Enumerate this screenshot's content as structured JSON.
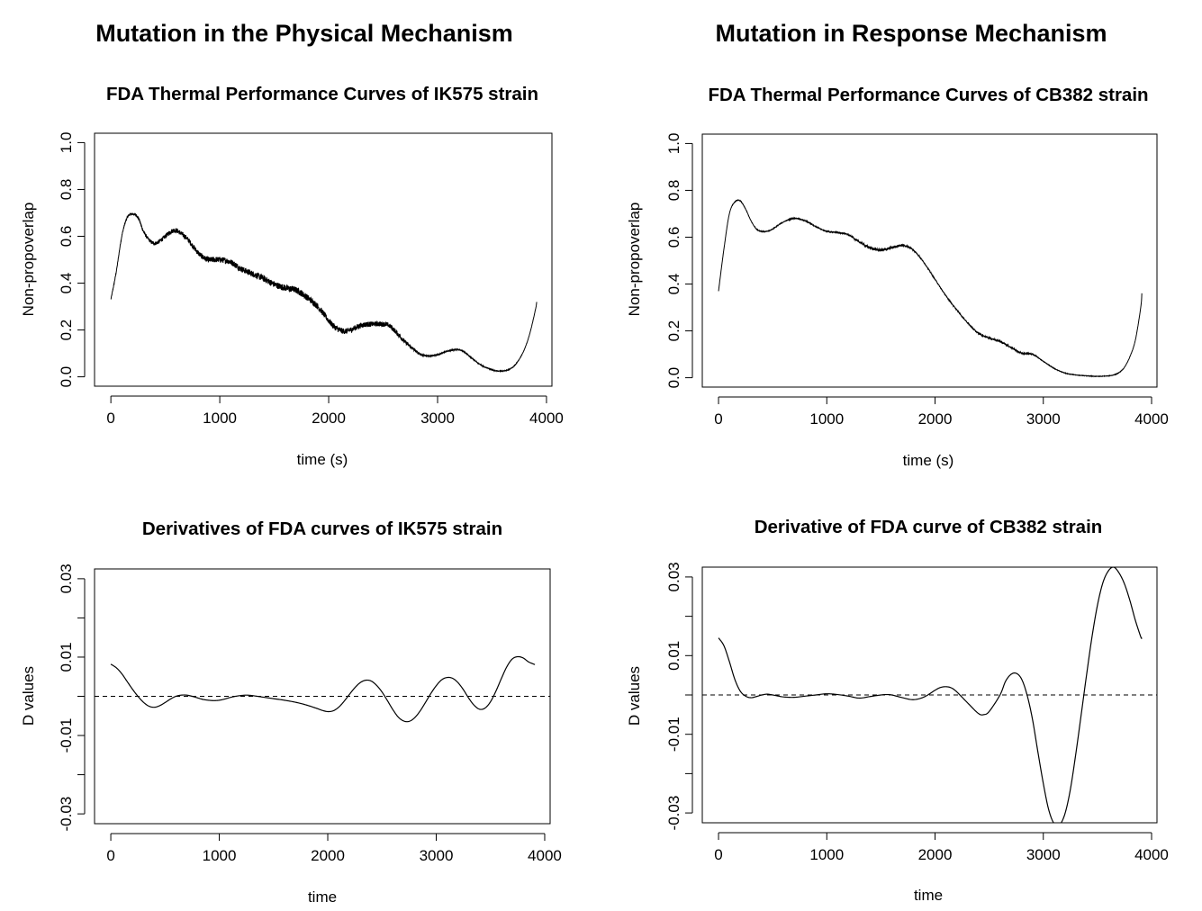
{
  "headings": {
    "left": "Mutation in the Physical Mechanism",
    "right": "Mutation in Response Mechanism"
  },
  "chart_data": [
    {
      "id": "p1",
      "type": "line",
      "title": "FDA Thermal Performance Curves of IK575 strain",
      "xlabel": "time (s)",
      "ylabel": "Non-propoverlap",
      "xlim": [
        -150,
        4050
      ],
      "ylim": [
        -0.04,
        1.04
      ],
      "xticks": [
        0,
        1000,
        2000,
        3000,
        4000
      ],
      "xtick_labels": [
        "0",
        "1000",
        "2000",
        "3000",
        "4000"
      ],
      "yticks": [
        0.0,
        0.2,
        0.4,
        0.6,
        0.8,
        1.0
      ],
      "ytick_labels": [
        "0.0",
        "0.2",
        "0.4",
        "0.6",
        "0.8",
        "1.0"
      ],
      "line_style": "solid",
      "noise": [
        [
          0,
          0.003
        ],
        [
          550,
          0.01
        ],
        [
          900,
          0.012
        ],
        [
          1400,
          0.014
        ],
        [
          1800,
          0.014
        ],
        [
          2200,
          0.012
        ],
        [
          2650,
          0.01
        ],
        [
          2900,
          0.003
        ],
        [
          3200,
          0.002
        ],
        [
          3910,
          0.001
        ]
      ],
      "x": [
        0,
        50,
        100,
        150,
        200,
        250,
        300,
        350,
        400,
        450,
        500,
        550,
        600,
        650,
        700,
        750,
        800,
        850,
        900,
        1000,
        1100,
        1200,
        1300,
        1400,
        1500,
        1600,
        1700,
        1800,
        1900,
        2000,
        2050,
        2100,
        2150,
        2200,
        2300,
        2400,
        2500,
        2550,
        2600,
        2700,
        2800,
        2850,
        2900,
        2950,
        3000,
        3100,
        3150,
        3200,
        3250,
        3300,
        3400,
        3500,
        3550,
        3600,
        3650,
        3700,
        3750,
        3800,
        3850,
        3900,
        3910
      ],
      "y": [
        0.33,
        0.45,
        0.6,
        0.68,
        0.695,
        0.68,
        0.62,
        0.585,
        0.57,
        0.58,
        0.6,
        0.62,
        0.625,
        0.61,
        0.59,
        0.56,
        0.53,
        0.51,
        0.5,
        0.5,
        0.49,
        0.46,
        0.44,
        0.42,
        0.395,
        0.38,
        0.37,
        0.34,
        0.3,
        0.24,
        0.215,
        0.2,
        0.195,
        0.2,
        0.22,
        0.225,
        0.225,
        0.22,
        0.2,
        0.15,
        0.11,
        0.095,
        0.09,
        0.09,
        0.095,
        0.11,
        0.115,
        0.115,
        0.105,
        0.085,
        0.05,
        0.03,
        0.025,
        0.025,
        0.03,
        0.045,
        0.075,
        0.12,
        0.19,
        0.29,
        0.32
      ]
    },
    {
      "id": "p2",
      "type": "line",
      "title": "FDA Thermal Performance Curves of CB382 strain",
      "xlabel": "time (s)",
      "ylabel": "Non-propoverlap",
      "xlim": [
        -150,
        4050
      ],
      "ylim": [
        -0.04,
        1.04
      ],
      "xticks": [
        0,
        1000,
        2000,
        3000,
        4000
      ],
      "xtick_labels": [
        "0",
        "1000",
        "2000",
        "3000",
        "4000"
      ],
      "yticks": [
        0.0,
        0.2,
        0.4,
        0.6,
        0.8,
        1.0
      ],
      "ytick_labels": [
        "0.0",
        "0.2",
        "0.4",
        "0.6",
        "0.8",
        "1.0"
      ],
      "line_style": "solid",
      "noise": [
        [
          0,
          0.001
        ],
        [
          1200,
          0.002
        ],
        [
          1300,
          0.005
        ],
        [
          1500,
          0.006
        ],
        [
          1750,
          0.004
        ],
        [
          1900,
          0.002
        ],
        [
          2400,
          0.002
        ],
        [
          2550,
          0.004
        ],
        [
          2800,
          0.003
        ],
        [
          3000,
          0.001
        ],
        [
          3910,
          0.001
        ]
      ],
      "x": [
        0,
        50,
        100,
        150,
        200,
        250,
        300,
        350,
        400,
        450,
        500,
        600,
        700,
        800,
        900,
        1000,
        1100,
        1200,
        1300,
        1400,
        1500,
        1600,
        1700,
        1800,
        1900,
        2000,
        2100,
        2200,
        2300,
        2400,
        2500,
        2600,
        2700,
        2800,
        2900,
        3000,
        3100,
        3200,
        3300,
        3400,
        3500,
        3600,
        3650,
        3700,
        3750,
        3800,
        3850,
        3900,
        3910
      ],
      "y": [
        0.37,
        0.55,
        0.7,
        0.75,
        0.755,
        0.72,
        0.67,
        0.635,
        0.625,
        0.625,
        0.635,
        0.665,
        0.68,
        0.67,
        0.645,
        0.625,
        0.62,
        0.61,
        0.58,
        0.555,
        0.545,
        0.555,
        0.565,
        0.545,
        0.49,
        0.42,
        0.35,
        0.29,
        0.235,
        0.19,
        0.17,
        0.155,
        0.13,
        0.105,
        0.1,
        0.07,
        0.04,
        0.02,
        0.012,
        0.008,
        0.006,
        0.008,
        0.012,
        0.022,
        0.045,
        0.09,
        0.16,
        0.3,
        0.36
      ]
    },
    {
      "id": "p3",
      "type": "line",
      "title": "Derivatives of FDA curves of IK575 strain",
      "xlabel": "time",
      "ylabel": "D values",
      "xlim": [
        -150,
        4050
      ],
      "ylim": [
        -0.0325,
        0.0325
      ],
      "xticks": [
        0,
        1000,
        2000,
        3000,
        4000
      ],
      "xtick_labels": [
        "0",
        "1000",
        "2000",
        "3000",
        "4000"
      ],
      "yticks": [
        -0.03,
        -0.02,
        -0.01,
        0.0,
        0.01,
        0.02,
        0.03
      ],
      "ytick_labels": [
        "-0.03",
        "",
        "-0.01",
        "",
        "0.01",
        "",
        "0.03"
      ],
      "line_style": "solid",
      "reference_line": {
        "y": 0,
        "style": "dashed"
      },
      "x": [
        0,
        50,
        100,
        150,
        200,
        250,
        300,
        350,
        400,
        450,
        500,
        550,
        600,
        650,
        700,
        750,
        800,
        850,
        900,
        950,
        1000,
        1050,
        1100,
        1150,
        1200,
        1250,
        1300,
        1350,
        1400,
        1450,
        1500,
        1600,
        1700,
        1800,
        1900,
        1950,
        2000,
        2050,
        2100,
        2150,
        2200,
        2250,
        2300,
        2350,
        2400,
        2450,
        2500,
        2550,
        2600,
        2650,
        2700,
        2750,
        2800,
        2850,
        2900,
        2950,
        3000,
        3050,
        3100,
        3150,
        3200,
        3250,
        3300,
        3350,
        3400,
        3450,
        3500,
        3550,
        3600,
        3650,
        3700,
        3750,
        3800,
        3850,
        3900,
        3910
      ],
      "y": [
        0.0082,
        0.0073,
        0.0058,
        0.0038,
        0.0018,
        0.0,
        -0.0015,
        -0.0025,
        -0.0028,
        -0.0024,
        -0.0016,
        -0.0007,
        0.0,
        0.0003,
        0.0003,
        0.0,
        -0.0004,
        -0.0008,
        -0.001,
        -0.0011,
        -0.001,
        -0.0007,
        -0.0003,
        0.0,
        0.0002,
        0.0003,
        0.0002,
        0.0,
        -0.0002,
        -0.0004,
        -0.0006,
        -0.001,
        -0.0015,
        -0.0022,
        -0.0031,
        -0.0036,
        -0.0039,
        -0.0037,
        -0.0028,
        -0.0013,
        0.0005,
        0.0022,
        0.0035,
        0.0041,
        0.0039,
        0.0028,
        0.0011,
        -0.0011,
        -0.0034,
        -0.0053,
        -0.0063,
        -0.0064,
        -0.0055,
        -0.0038,
        -0.0016,
        0.0007,
        0.0027,
        0.0042,
        0.0048,
        0.0046,
        0.0035,
        0.0017,
        -0.0005,
        -0.0023,
        -0.0033,
        -0.003,
        -0.0014,
        0.0013,
        0.0045,
        0.0075,
        0.0095,
        0.0101,
        0.0098,
        0.0088,
        0.0082,
        0.0081
      ]
    },
    {
      "id": "p4",
      "type": "line",
      "title": "Derivative of FDA curve of CB382 strain",
      "xlabel": "time",
      "ylabel": "D values",
      "xlim": [
        -150,
        4050
      ],
      "ylim": [
        -0.0325,
        0.0325
      ],
      "xticks": [
        0,
        1000,
        2000,
        3000,
        4000
      ],
      "xtick_labels": [
        "0",
        "1000",
        "2000",
        "3000",
        "4000"
      ],
      "yticks": [
        -0.03,
        -0.02,
        -0.01,
        0.0,
        0.01,
        0.02,
        0.03
      ],
      "ytick_labels": [
        "-0.03",
        "",
        "-0.01",
        "",
        "0.01",
        "",
        "0.03"
      ],
      "line_style": "solid",
      "reference_line": {
        "y": 0,
        "style": "dashed"
      },
      "x": [
        0,
        50,
        100,
        150,
        200,
        250,
        300,
        350,
        400,
        450,
        500,
        600,
        700,
        800,
        900,
        1000,
        1100,
        1200,
        1300,
        1400,
        1500,
        1550,
        1600,
        1700,
        1800,
        1900,
        2000,
        2050,
        2100,
        2150,
        2200,
        2300,
        2400,
        2450,
        2500,
        2600,
        2650,
        2700,
        2750,
        2800,
        2850,
        2900,
        2950,
        3000,
        3050,
        3100,
        3150,
        3200,
        3250,
        3300,
        3350,
        3400,
        3450,
        3500,
        3550,
        3600,
        3650,
        3700,
        3750,
        3800,
        3850,
        3900,
        3910
      ],
      "y": [
        0.0145,
        0.0125,
        0.0085,
        0.004,
        0.001,
        -0.0003,
        -0.0007,
        -0.0004,
        0.0,
        0.0002,
        0.0,
        -0.0005,
        -0.0006,
        -0.0003,
        0.0,
        0.0003,
        0.0001,
        -0.0003,
        -0.0008,
        -0.0004,
        0.0,
        0.0001,
        0.0,
        -0.0007,
        -0.0012,
        -0.0005,
        0.0012,
        0.0019,
        0.0021,
        0.0018,
        0.0008,
        -0.002,
        -0.0047,
        -0.005,
        -0.0042,
        0.0,
        0.0034,
        0.0052,
        0.0055,
        0.004,
        0.0,
        -0.0062,
        -0.0145,
        -0.0225,
        -0.0292,
        -0.0327,
        -0.033,
        -0.0302,
        -0.024,
        -0.015,
        -0.005,
        0.0052,
        0.0148,
        0.0228,
        0.0285,
        0.0315,
        0.0325,
        0.031,
        0.0282,
        0.024,
        0.019,
        0.0148,
        0.0145
      ]
    }
  ]
}
